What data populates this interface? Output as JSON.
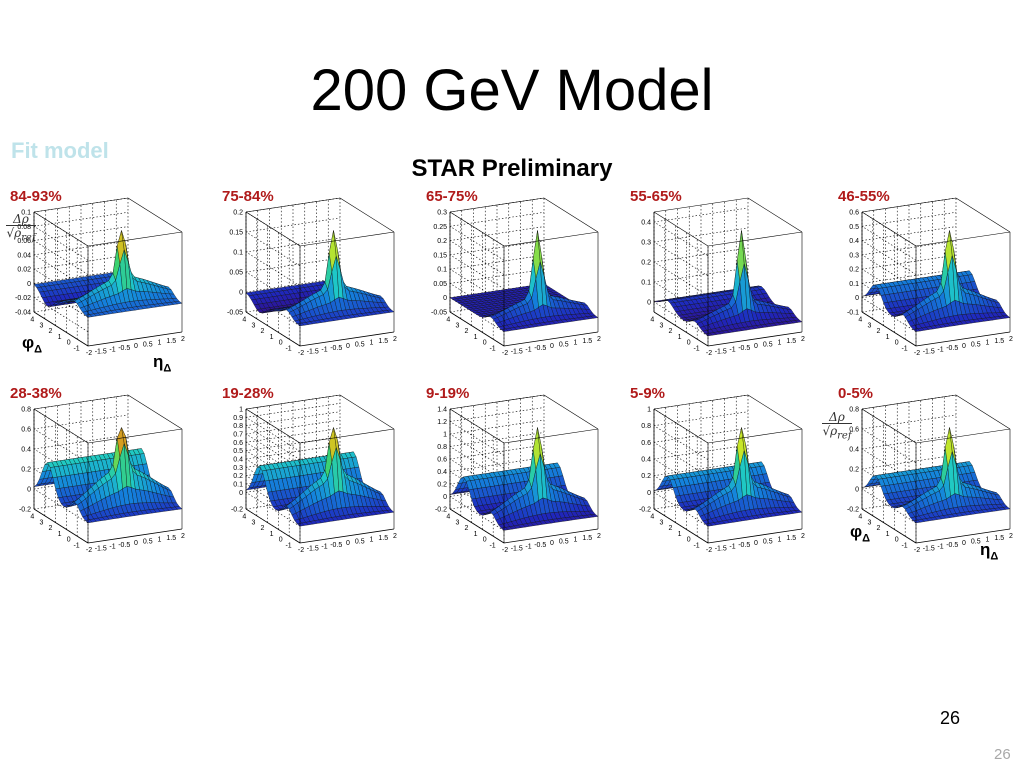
{
  "slide": {
    "title": "200 GeV Model",
    "subtitle_left": "Fit model",
    "preliminary": "STAR Preliminary",
    "page_number": "26",
    "page_number_footer": "26"
  },
  "axis_symbols": {
    "phi": "φ",
    "eta": "η",
    "delta": "Δ",
    "z_numerator": "Δρ",
    "z_denominator": "ρ",
    "z_sub": "ref"
  },
  "chart_data": [
    {
      "type": "surface3d",
      "centrality": "84-93%",
      "x_axis": "η_Δ",
      "y_axis": "φ_Δ",
      "x_ticks": [
        "-2",
        "-1.5",
        "-1",
        "-0.5",
        "0",
        "0.5",
        "1",
        "1.5",
        "2"
      ],
      "y_ticks": [
        "-1",
        "0",
        "1",
        "2",
        "3",
        "4"
      ],
      "z_ticks": [
        "-0.04",
        "-0.02",
        "0",
        "0.02",
        "0.04",
        "0.06",
        "0.08",
        "0.1"
      ],
      "zlim": [
        -0.04,
        0.1
      ],
      "peak": 0.1,
      "ridge": 0.035,
      "away": -0.02
    },
    {
      "type": "surface3d",
      "centrality": "75-84%",
      "x_axis": "η_Δ",
      "y_axis": "φ_Δ",
      "x_ticks": [
        "-2",
        "-1.5",
        "-1",
        "-0.5",
        "0",
        "0.5",
        "1",
        "1.5",
        "2"
      ],
      "y_ticks": [
        "-1",
        "0",
        "1",
        "2",
        "3",
        "4"
      ],
      "z_ticks": [
        "-0.05",
        "0",
        "0.05",
        "0.1",
        "0.15",
        "0.2"
      ],
      "zlim": [
        -0.05,
        0.2
      ],
      "peak": 0.19,
      "ridge": 0.06,
      "away": -0.03
    },
    {
      "type": "surface3d",
      "centrality": "65-75%",
      "x_axis": "η_Δ",
      "y_axis": "φ_Δ",
      "x_ticks": [
        "-2",
        "-1.5",
        "-1",
        "-0.5",
        "0",
        "0.5",
        "1",
        "1.5",
        "2"
      ],
      "y_ticks": [
        "-1",
        "0",
        "1",
        "2",
        "3",
        "4"
      ],
      "z_ticks": [
        "-0.05",
        "0",
        "0.05",
        "0.1",
        "0.15",
        "0.2",
        "0.25",
        "0.3"
      ],
      "zlim": [
        -0.05,
        0.3
      ],
      "peak": 0.28,
      "ridge": 0.07,
      "away": 0.0
    },
    {
      "type": "surface3d",
      "centrality": "55-65%",
      "x_axis": "η_Δ",
      "y_axis": "φ_Δ",
      "x_ticks": [
        "-2",
        "-1.5",
        "-1",
        "-0.5",
        "0",
        "0.5",
        "1",
        "1.5",
        "2"
      ],
      "y_ticks": [
        "-1",
        "0",
        "1",
        "2",
        "3",
        "4"
      ],
      "z_ticks": [
        "0",
        "0.1",
        "0.2",
        "0.3",
        "0.4"
      ],
      "zlim": [
        -0.05,
        0.45
      ],
      "peak": 0.42,
      "ridge": 0.1,
      "away": 0.05
    },
    {
      "type": "surface3d",
      "centrality": "46-55%",
      "x_axis": "η_Δ",
      "y_axis": "φ_Δ",
      "x_ticks": [
        "-2",
        "-1.5",
        "-1",
        "-0.5",
        "0",
        "0.5",
        "1",
        "1.5",
        "2"
      ],
      "y_ticks": [
        "-1",
        "0",
        "1",
        "2",
        "3",
        "4"
      ],
      "z_ticks": [
        "-0.1",
        "0",
        "0.1",
        "0.2",
        "0.3",
        "0.4",
        "0.5",
        "0.6"
      ],
      "zlim": [
        -0.1,
        0.6
      ],
      "peak": 0.58,
      "ridge": 0.2,
      "away": 0.15
    },
    {
      "type": "surface3d",
      "centrality": "28-38%",
      "x_axis": "η_Δ",
      "y_axis": "φ_Δ",
      "x_ticks": [
        "-2",
        "-1.5",
        "-1",
        "-0.5",
        "0",
        "0.5",
        "1",
        "1.5",
        "2"
      ],
      "y_ticks": [
        "-1",
        "0",
        "1",
        "2",
        "3",
        "4"
      ],
      "z_ticks": [
        "-0.2",
        "0",
        "0.2",
        "0.4",
        "0.6",
        "0.8"
      ],
      "zlim": [
        -0.2,
        0.8
      ],
      "peak": 0.78,
      "ridge": 0.4,
      "away": 0.35
    },
    {
      "type": "surface3d",
      "centrality": "19-28%",
      "x_axis": "η_Δ",
      "y_axis": "φ_Δ",
      "x_ticks": [
        "-2",
        "-1.5",
        "-1",
        "-0.5",
        "0",
        "0.5",
        "1",
        "1.5",
        "2"
      ],
      "y_ticks": [
        "-1",
        "0",
        "1",
        "2",
        "3",
        "4"
      ],
      "z_ticks": [
        "-0.2",
        "0",
        "0.1",
        "0.2",
        "0.3",
        "0.4",
        "0.5",
        "0.6",
        "0.7",
        "0.8",
        "0.9",
        "1"
      ],
      "zlim": [
        -0.2,
        1.0
      ],
      "peak": 0.95,
      "ridge": 0.45,
      "away": 0.42
    },
    {
      "type": "surface3d",
      "centrality": "9-19%",
      "x_axis": "η_Δ",
      "y_axis": "φ_Δ",
      "x_ticks": [
        "-2",
        "-1.5",
        "-1",
        "-0.5",
        "0",
        "0.5",
        "1",
        "1.5",
        "2"
      ],
      "y_ticks": [
        "-1",
        "0",
        "1",
        "2",
        "3",
        "4"
      ],
      "z_ticks": [
        "-0.2",
        "0",
        "0.2",
        "0.4",
        "0.6",
        "0.8",
        "1",
        "1.2",
        "1.4"
      ],
      "zlim": [
        -0.2,
        1.4
      ],
      "peak": 1.3,
      "ridge": 0.5,
      "away": 0.45
    },
    {
      "type": "surface3d",
      "centrality": "5-9%",
      "x_axis": "η_Δ",
      "y_axis": "φ_Δ",
      "x_ticks": [
        "-2",
        "-1.5",
        "-1",
        "-0.5",
        "0",
        "0.5",
        "1",
        "1.5",
        "2"
      ],
      "y_ticks": [
        "-1",
        "0",
        "1",
        "2",
        "3",
        "4"
      ],
      "z_ticks": [
        "-0.2",
        "0",
        "0.2",
        "0.4",
        "0.6",
        "0.8",
        "1"
      ],
      "zlim": [
        -0.2,
        1.0
      ],
      "peak": 0.98,
      "ridge": 0.35,
      "away": 0.3
    },
    {
      "type": "surface3d",
      "centrality": "0-5%",
      "x_axis": "η_Δ",
      "y_axis": "φ_Δ",
      "x_ticks": [
        "-2",
        "-1.5",
        "-1",
        "-0.5",
        "0",
        "0.5",
        "1",
        "1.5",
        "2"
      ],
      "y_ticks": [
        "-1",
        "0",
        "1",
        "2",
        "3",
        "4"
      ],
      "z_ticks": [
        "-0.2",
        "0",
        "0.2",
        "0.4",
        "0.6",
        "0.8"
      ],
      "zlim": [
        -0.2,
        0.8
      ],
      "peak": 0.78,
      "ridge": 0.25,
      "away": 0.22
    }
  ]
}
